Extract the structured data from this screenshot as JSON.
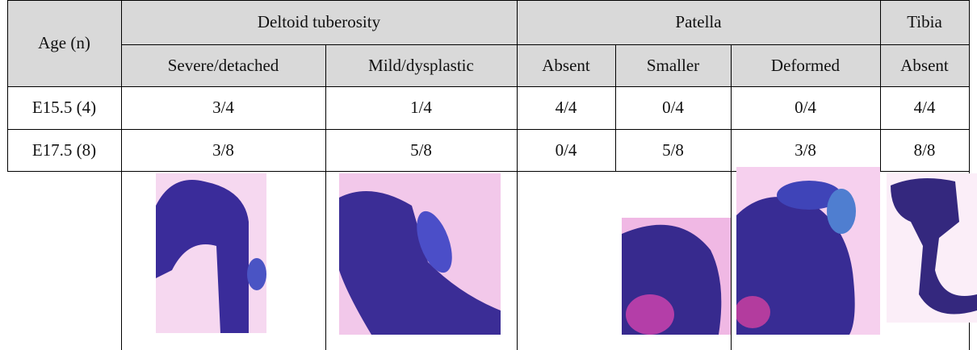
{
  "header": {
    "age": "Age (n)",
    "groups": [
      "Deltoid tuberosity",
      "Patella",
      "Tibia"
    ],
    "subheaders": [
      "Severe/detached",
      "Mild/dysplastic",
      "Absent",
      "Smaller",
      "Deformed",
      "Absent"
    ]
  },
  "table": {
    "rows": [
      [
        "E15.5 (4)",
        "3/4",
        "1/4",
        "4/4",
        "0/4",
        "0/4",
        "4/4"
      ],
      [
        "E17.5 (8)",
        "3/8",
        "5/8",
        "0/4",
        "5/8",
        "3/8",
        "8/8"
      ]
    ]
  }
}
